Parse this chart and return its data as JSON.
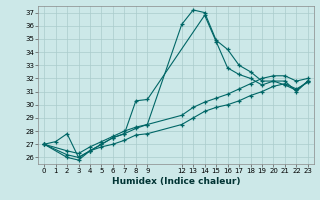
{
  "xlabel": "Humidex (Indice chaleur)",
  "background_color": "#cce8e8",
  "grid_color": "#aacccc",
  "line_color": "#006666",
  "xlim": [
    -0.5,
    23.5
  ],
  "ylim": [
    25.5,
    37.5
  ],
  "xticks": [
    0,
    1,
    2,
    3,
    4,
    5,
    6,
    7,
    8,
    9,
    12,
    13,
    14,
    15,
    16,
    17,
    18,
    19,
    20,
    21,
    22,
    23
  ],
  "yticks": [
    26,
    27,
    28,
    29,
    30,
    31,
    32,
    33,
    34,
    35,
    36,
    37
  ],
  "lines": [
    {
      "x": [
        0,
        2,
        3,
        4,
        5,
        6,
        7,
        8,
        9,
        14,
        15,
        16,
        17,
        18,
        19,
        20,
        21,
        22,
        23
      ],
      "y": [
        27.0,
        26.0,
        25.8,
        26.5,
        27.0,
        27.5,
        27.8,
        30.3,
        30.4,
        36.8,
        34.8,
        32.8,
        32.3,
        32.0,
        31.5,
        31.8,
        31.5,
        31.1,
        31.8
      ]
    },
    {
      "x": [
        0,
        1,
        2,
        3,
        4,
        5,
        6,
        7,
        8,
        9,
        12,
        13,
        14,
        15,
        16,
        17,
        18,
        19,
        20,
        21,
        22,
        23
      ],
      "y": [
        27.0,
        27.2,
        27.8,
        26.0,
        26.5,
        27.0,
        27.5,
        27.8,
        28.2,
        28.5,
        36.1,
        37.2,
        37.0,
        34.9,
        34.2,
        33.0,
        32.5,
        31.8,
        31.8,
        31.8,
        31.0,
        31.8
      ]
    },
    {
      "x": [
        0,
        2,
        3,
        4,
        5,
        6,
        7,
        8,
        9,
        12,
        13,
        14,
        15,
        16,
        17,
        18,
        19,
        20,
        21,
        22,
        23
      ],
      "y": [
        27.0,
        26.2,
        26.0,
        26.5,
        26.8,
        27.0,
        27.3,
        27.7,
        27.8,
        28.5,
        29.0,
        29.5,
        29.8,
        30.0,
        30.3,
        30.7,
        31.0,
        31.4,
        31.6,
        31.2,
        31.7
      ]
    },
    {
      "x": [
        0,
        2,
        3,
        4,
        5,
        6,
        7,
        8,
        9,
        12,
        13,
        14,
        15,
        16,
        17,
        18,
        19,
        20,
        21,
        22,
        23
      ],
      "y": [
        27.0,
        26.5,
        26.3,
        26.8,
        27.2,
        27.6,
        28.0,
        28.3,
        28.5,
        29.2,
        29.8,
        30.2,
        30.5,
        30.8,
        31.2,
        31.6,
        32.0,
        32.2,
        32.2,
        31.8,
        32.0
      ]
    }
  ]
}
